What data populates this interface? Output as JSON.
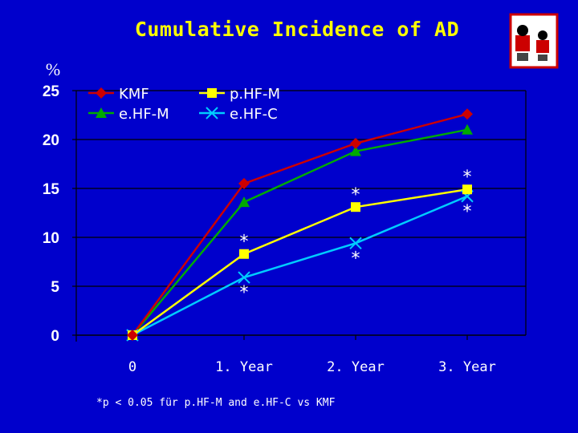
{
  "slide": {
    "title": "Cumulative Incidence of AD",
    "footnote": "*p < 0.05 für p.HF-M and e.HF-C vs KMF",
    "logo_icon": "study-logo-icon"
  },
  "colors": {
    "background": "#0000cc",
    "title": "#ffff00",
    "KMF": "#cc0000",
    "p.HF-M": "#ffff00",
    "e.HF-M": "#00aa00",
    "e.HF-C": "#00ccff"
  },
  "chart_data": {
    "type": "line",
    "title": "Cumulative Incidence of AD",
    "ylabel": "%",
    "xlabel": "",
    "ylim": [
      0,
      25
    ],
    "yticks": [
      "0",
      "5",
      "10",
      "15",
      "20",
      "25"
    ],
    "categories": [
      "0",
      "1. Year",
      "2. Year",
      "3. Year"
    ],
    "grid": true,
    "legend": "top-left",
    "series": [
      {
        "name": "KMF",
        "marker": "diamond",
        "values": [
          0,
          15.5,
          19.6,
          22.6
        ]
      },
      {
        "name": "p.HF-M",
        "marker": "square",
        "values": [
          0,
          8.3,
          13.1,
          14.9
        ]
      },
      {
        "name": "e.HF-M",
        "marker": "triangle",
        "values": [
          0,
          13.6,
          18.8,
          21.0
        ]
      },
      {
        "name": "e.HF-C",
        "marker": "x",
        "values": [
          0,
          5.9,
          9.4,
          14.2
        ]
      }
    ],
    "annotations": [
      {
        "label": "*",
        "series": "p.HF-M",
        "category": "1. Year",
        "side": "above"
      },
      {
        "label": "*",
        "series": "e.HF-C",
        "category": "1. Year",
        "side": "below"
      },
      {
        "label": "*",
        "series": "p.HF-M",
        "category": "2. Year",
        "side": "above"
      },
      {
        "label": "*",
        "series": "e.HF-C",
        "category": "2. Year",
        "side": "below"
      },
      {
        "label": "*",
        "series": "p.HF-M",
        "category": "3. Year",
        "side": "above"
      },
      {
        "label": "*",
        "series": "e.HF-C",
        "category": "3. Year",
        "side": "below"
      }
    ]
  }
}
